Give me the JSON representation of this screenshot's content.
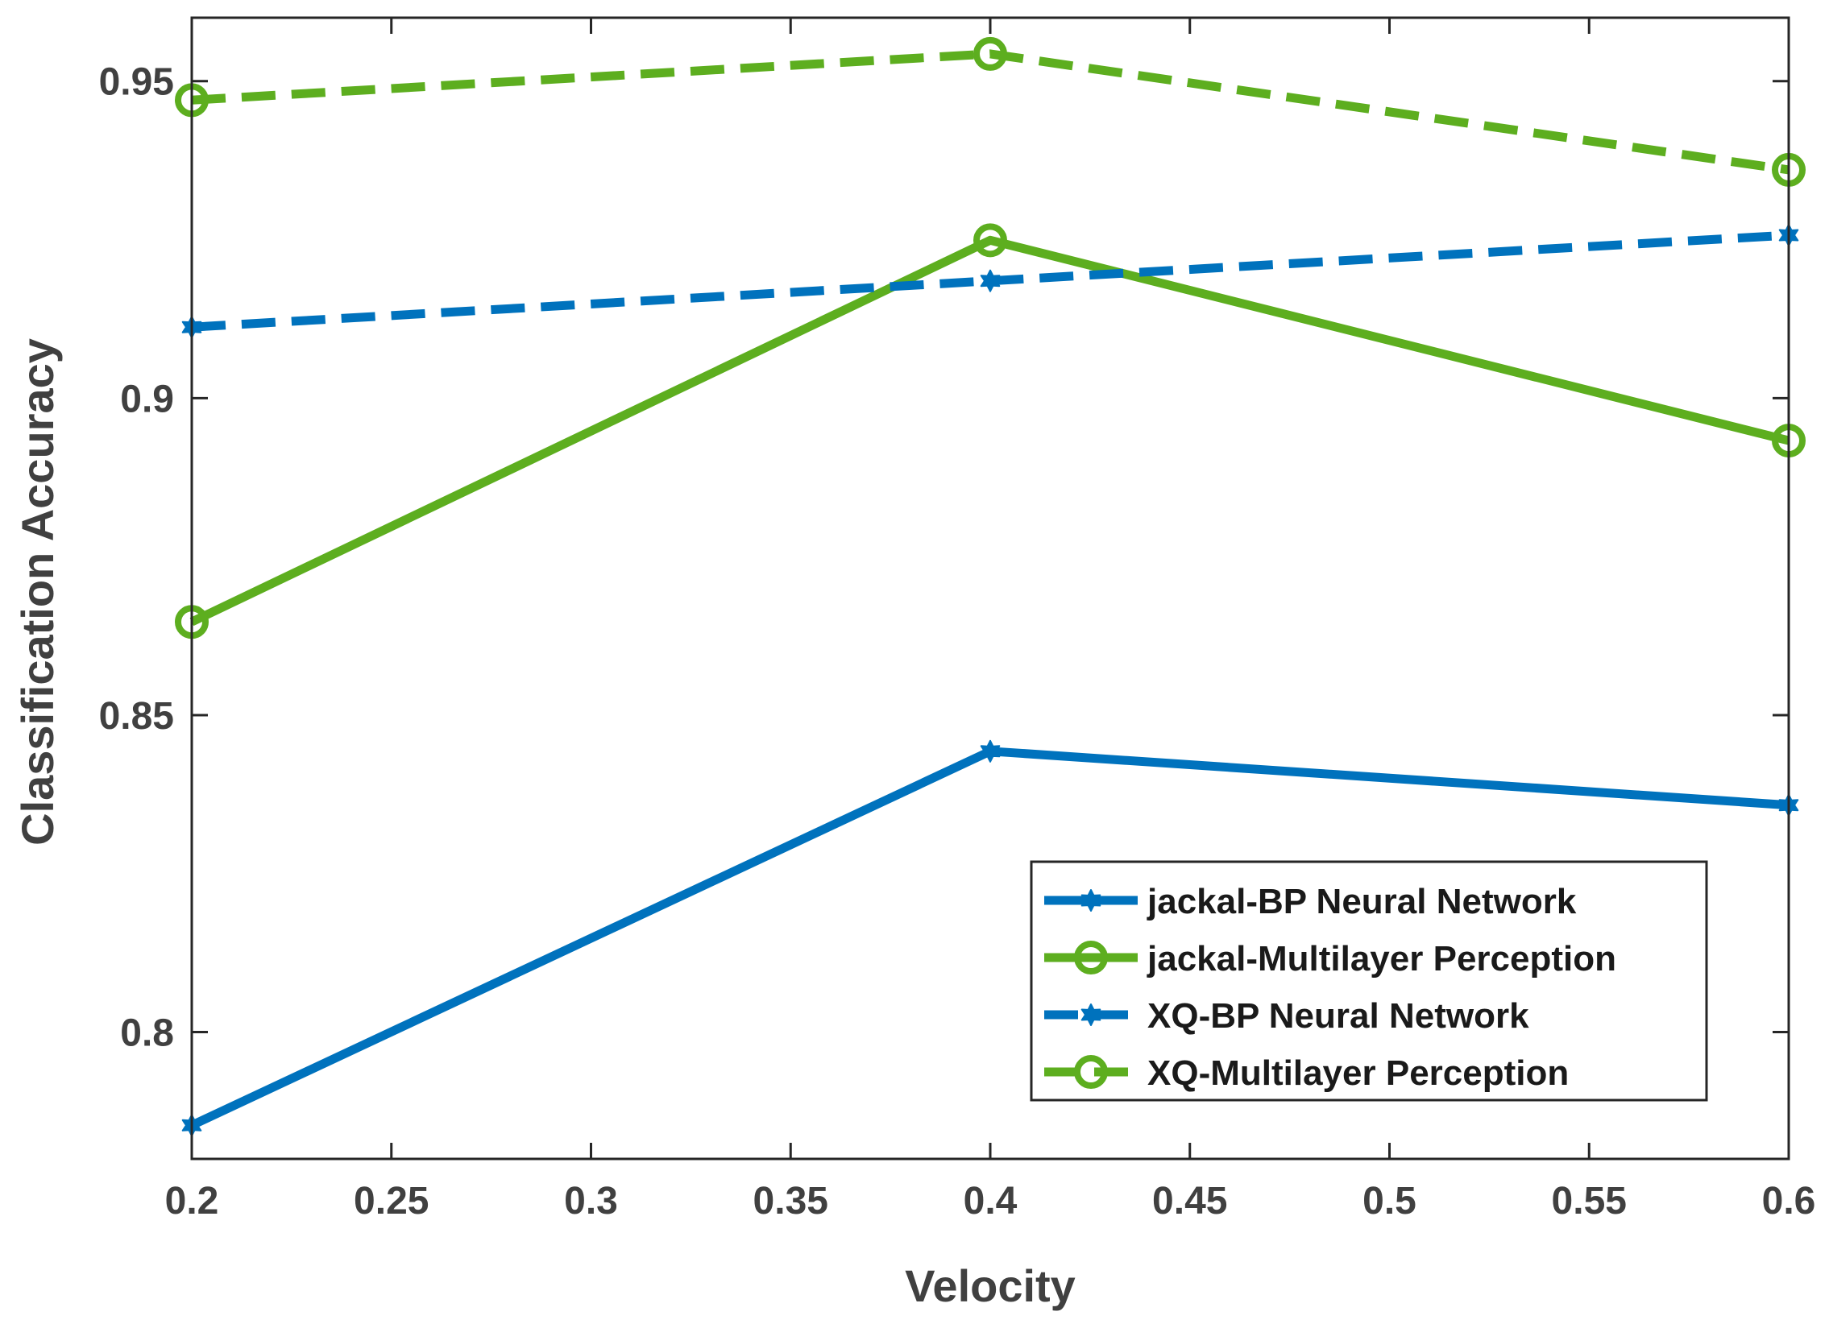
{
  "chart_data": {
    "type": "line",
    "title": "",
    "xlabel": "Velocity",
    "ylabel": "Classification Accuracy",
    "xlim": [
      0.2,
      0.6
    ],
    "ylim": [
      0.78,
      0.96
    ],
    "xticks": [
      0.2,
      0.25,
      0.3,
      0.35,
      0.4,
      0.45,
      0.5,
      0.55,
      0.6
    ],
    "xtick_labels": [
      "0.2",
      "0.25",
      "0.3",
      "0.35",
      "0.4",
      "0.45",
      "0.5",
      "0.55",
      "0.6"
    ],
    "yticks": [
      0.8,
      0.85,
      0.9,
      0.95
    ],
    "ytick_labels": [
      "0.8",
      "0.85",
      "0.9",
      "0.95"
    ],
    "grid": false,
    "legend_position": "bottom-right",
    "x": [
      0.2,
      0.4,
      0.6
    ],
    "series": [
      {
        "name": "jackal-BP Neural Network",
        "values": [
          0.7853,
          0.8443,
          0.8358
        ],
        "color": "#0072BD",
        "line": "solid",
        "marker": "star"
      },
      {
        "name": "jackal-Multilayer Perception",
        "values": [
          0.8647,
          0.9249,
          0.8933
        ],
        "color": "#5DAE1F",
        "line": "solid",
        "marker": "circle"
      },
      {
        "name": "XQ-BP Neural Network",
        "values": [
          0.9112,
          0.9185,
          0.9257
        ],
        "color": "#0072BD",
        "line": "dashed",
        "marker": "star"
      },
      {
        "name": "XQ-Multilayer Perception",
        "values": [
          0.947,
          0.9543,
          0.936
        ],
        "color": "#5DAE1F",
        "line": "dashed",
        "marker": "circle"
      }
    ]
  }
}
